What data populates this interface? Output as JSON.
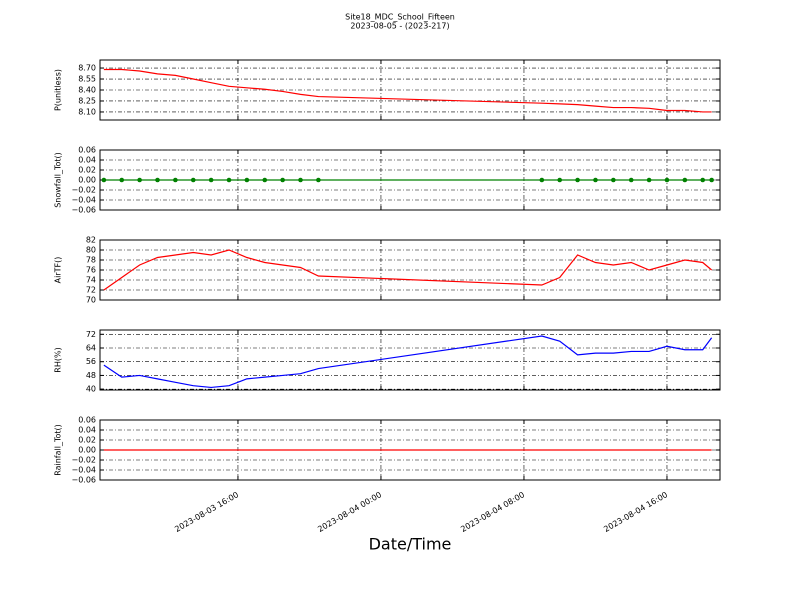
{
  "chart_data": [
    {
      "type": "line",
      "title": "Site18_MDC_School_Fifteen",
      "subtitle": "2023-08-05 - (2023-217)",
      "ylabel": "P(unitless)",
      "x": [
        "2023-08-03 08:30",
        "2023-08-03 09:30",
        "2023-08-03 10:30",
        "2023-08-03 11:30",
        "2023-08-03 12:30",
        "2023-08-03 13:30",
        "2023-08-03 14:30",
        "2023-08-03 15:30",
        "2023-08-03 16:30",
        "2023-08-03 17:30",
        "2023-08-03 18:30",
        "2023-08-03 19:30",
        "2023-08-03 20:30",
        "2023-08-04 09:00",
        "2023-08-04 10:00",
        "2023-08-04 11:00",
        "2023-08-04 12:00",
        "2023-08-04 13:00",
        "2023-08-04 14:00",
        "2023-08-04 15:00",
        "2023-08-04 16:00",
        "2023-08-04 17:00",
        "2023-08-04 18:00",
        "2023-08-04 18:30"
      ],
      "series": [
        {
          "name": "P",
          "color": "#ff0000",
          "values": [
            8.68,
            8.68,
            8.66,
            8.62,
            8.6,
            8.55,
            8.5,
            8.45,
            8.43,
            8.41,
            8.38,
            8.34,
            8.31,
            8.22,
            8.21,
            8.2,
            8.18,
            8.16,
            8.16,
            8.15,
            8.12,
            8.12,
            8.1,
            8.1
          ]
        }
      ],
      "xlim": [
        "2023-08-03 08:17",
        "2023-08-04 18:58"
      ],
      "ylim": [
        7.99,
        8.81
      ],
      "yticks": [
        {
          "value": 8.1,
          "label": "8.10"
        },
        {
          "value": 8.25,
          "label": "8.25"
        },
        {
          "value": 8.4,
          "label": "8.40"
        },
        {
          "value": 8.55,
          "label": "8.55"
        },
        {
          "value": 8.7,
          "label": "8.70"
        }
      ],
      "grid": true
    },
    {
      "type": "line",
      "ylabel": "Snowfall_Tot()",
      "markers": true,
      "x": [
        "2023-08-03 08:30",
        "2023-08-03 09:30",
        "2023-08-03 10:30",
        "2023-08-03 11:30",
        "2023-08-03 12:30",
        "2023-08-03 13:30",
        "2023-08-03 14:30",
        "2023-08-03 15:30",
        "2023-08-03 16:30",
        "2023-08-03 17:30",
        "2023-08-03 18:30",
        "2023-08-03 19:30",
        "2023-08-03 20:30",
        "2023-08-04 09:00",
        "2023-08-04 10:00",
        "2023-08-04 11:00",
        "2023-08-04 12:00",
        "2023-08-04 13:00",
        "2023-08-04 14:00",
        "2023-08-04 15:00",
        "2023-08-04 16:00",
        "2023-08-04 17:00",
        "2023-08-04 18:00",
        "2023-08-04 18:30"
      ],
      "series": [
        {
          "name": "Snowfall_Tot",
          "color": "#008000",
          "values": [
            0,
            0,
            0,
            0,
            0,
            0,
            0,
            0,
            0,
            0,
            0,
            0,
            0,
            0,
            0,
            0,
            0,
            0,
            0,
            0,
            0,
            0,
            0,
            0
          ]
        }
      ],
      "xlim": [
        "2023-08-03 08:17",
        "2023-08-04 18:58"
      ],
      "ylim": [
        -0.06,
        0.06
      ],
      "yticks": [
        {
          "value": -0.06,
          "label": "−0.06"
        },
        {
          "value": -0.04,
          "label": "−0.04"
        },
        {
          "value": -0.02,
          "label": "−0.02"
        },
        {
          "value": 0,
          "label": "0.00"
        },
        {
          "value": 0.02,
          "label": "0.02"
        },
        {
          "value": 0.04,
          "label": "0.04"
        },
        {
          "value": 0.06,
          "label": "0.06"
        }
      ],
      "grid": true
    },
    {
      "type": "line",
      "ylabel": "AirTF()",
      "x": [
        "2023-08-03 08:30",
        "2023-08-03 09:30",
        "2023-08-03 10:30",
        "2023-08-03 11:30",
        "2023-08-03 12:30",
        "2023-08-03 13:30",
        "2023-08-03 14:30",
        "2023-08-03 15:30",
        "2023-08-03 16:30",
        "2023-08-03 17:30",
        "2023-08-03 18:30",
        "2023-08-03 19:30",
        "2023-08-03 20:30",
        "2023-08-04 09:00",
        "2023-08-04 10:00",
        "2023-08-04 11:00",
        "2023-08-04 12:00",
        "2023-08-04 13:00",
        "2023-08-04 14:00",
        "2023-08-04 15:00",
        "2023-08-04 16:00",
        "2023-08-04 17:00",
        "2023-08-04 18:00",
        "2023-08-04 18:30"
      ],
      "series": [
        {
          "name": "AirTF",
          "color": "#ff0000",
          "values": [
            72,
            74.5,
            77,
            78.5,
            79,
            79.5,
            79,
            80,
            78.5,
            77.5,
            77,
            76.5,
            74.8,
            73,
            74.5,
            79,
            77.5,
            77,
            77.5,
            76,
            77,
            78,
            77.5,
            76
          ]
        }
      ],
      "xlim": [
        "2023-08-03 08:17",
        "2023-08-04 18:58"
      ],
      "ylim": [
        70,
        82
      ],
      "yticks": [
        70,
        72,
        74,
        76,
        78,
        80,
        82
      ],
      "grid": true
    },
    {
      "type": "line",
      "ylabel": "RH(%)",
      "x": [
        "2023-08-03 08:30",
        "2023-08-03 09:30",
        "2023-08-03 10:30",
        "2023-08-03 11:30",
        "2023-08-03 12:30",
        "2023-08-03 13:30",
        "2023-08-03 14:30",
        "2023-08-03 15:30",
        "2023-08-03 16:30",
        "2023-08-03 17:30",
        "2023-08-03 18:30",
        "2023-08-03 19:30",
        "2023-08-03 20:30",
        "2023-08-04 09:00",
        "2023-08-04 10:00",
        "2023-08-04 11:00",
        "2023-08-04 12:00",
        "2023-08-04 13:00",
        "2023-08-04 14:00",
        "2023-08-04 15:00",
        "2023-08-04 16:00",
        "2023-08-04 17:00",
        "2023-08-04 18:00",
        "2023-08-04 18:30"
      ],
      "series": [
        {
          "name": "RH",
          "color": "#0000ff",
          "values": [
            54,
            47,
            48,
            46,
            44,
            42,
            41,
            42,
            46,
            47,
            48,
            49,
            52,
            71,
            68,
            60,
            61,
            61,
            62,
            62,
            65,
            63,
            63,
            70
          ]
        }
      ],
      "xlim": [
        "2023-08-03 08:17",
        "2023-08-04 18:58"
      ],
      "ylim": [
        39.5,
        74.5
      ],
      "yticks": [
        40,
        48,
        56,
        64,
        72
      ],
      "grid": true
    },
    {
      "type": "line",
      "ylabel": "Rainfall_Tot()",
      "xlabel": "Date/Time",
      "x": [
        "2023-08-03 08:30",
        "2023-08-03 09:30",
        "2023-08-03 10:30",
        "2023-08-03 11:30",
        "2023-08-03 12:30",
        "2023-08-03 13:30",
        "2023-08-03 14:30",
        "2023-08-03 15:30",
        "2023-08-03 16:30",
        "2023-08-03 17:30",
        "2023-08-03 18:30",
        "2023-08-03 19:30",
        "2023-08-03 20:30",
        "2023-08-04 09:00",
        "2023-08-04 10:00",
        "2023-08-04 11:00",
        "2023-08-04 12:00",
        "2023-08-04 13:00",
        "2023-08-04 14:00",
        "2023-08-04 15:00",
        "2023-08-04 16:00",
        "2023-08-04 17:00",
        "2023-08-04 18:00",
        "2023-08-04 18:30"
      ],
      "series": [
        {
          "name": "Rainfall_Tot",
          "color": "#ff0000",
          "values": [
            0,
            0,
            0,
            0,
            0,
            0,
            0,
            0,
            0,
            0,
            0,
            0,
            0,
            0,
            0,
            0,
            0,
            0,
            0,
            0,
            0,
            0,
            0,
            0
          ]
        }
      ],
      "xlim": [
        "2023-08-03 08:17",
        "2023-08-04 18:58"
      ],
      "xticks": [
        "2023-08-03 16:00",
        "2023-08-04 00:00",
        "2023-08-04 08:00",
        "2023-08-04 16:00"
      ],
      "ylim": [
        -0.06,
        0.06
      ],
      "yticks": [
        {
          "value": -0.06,
          "label": "−0.06"
        },
        {
          "value": -0.04,
          "label": "−0.04"
        },
        {
          "value": -0.02,
          "label": "−0.02"
        },
        {
          "value": 0,
          "label": "0.00"
        },
        {
          "value": 0.02,
          "label": "0.02"
        },
        {
          "value": 0.04,
          "label": "0.04"
        },
        {
          "value": 0.06,
          "label": "0.06"
        }
      ],
      "grid": true
    }
  ]
}
